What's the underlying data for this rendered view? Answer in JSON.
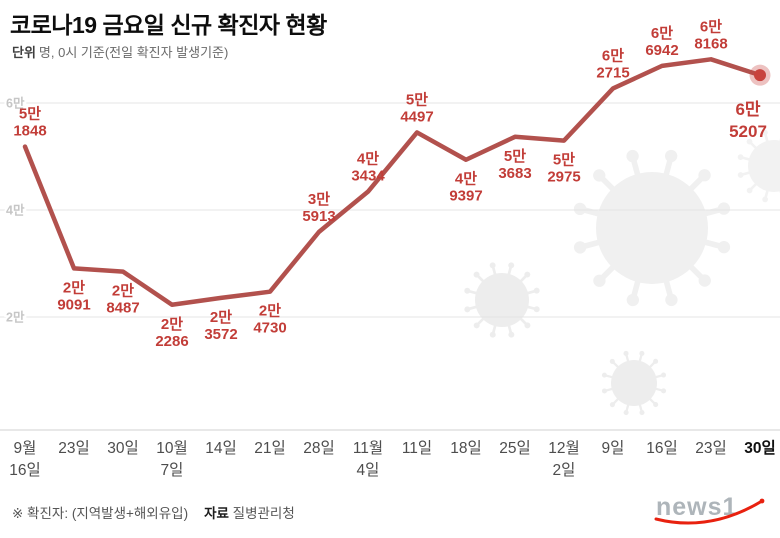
{
  "header": {
    "title": "코로나19 금요일 신규 확진자 현황",
    "unit_label": "단위",
    "unit_text": "명, 0시 기준(전일 확진자 발생기준)"
  },
  "footer": {
    "note": "※ 확진자: (지역발생+해외유입)",
    "source_label": "자료",
    "source": "질병관리청",
    "logo": "news1"
  },
  "chart_data": {
    "type": "line",
    "title": "코로나19 금요일 신규 확진자 현황",
    "ylabel": "명",
    "ylim": [
      0,
      70000
    ],
    "grid": true,
    "legend": "none",
    "line_color": "#b2514d",
    "marker_color": "#c8423d",
    "label_color": "#c23d38",
    "grid_color": "#e4e4e4",
    "y_ticks": [
      {
        "label": "2만",
        "value": 20000
      },
      {
        "label": "4만",
        "value": 40000
      },
      {
        "label": "6만",
        "value": 60000
      }
    ],
    "points": [
      {
        "x_label": [
          "9월",
          "16일"
        ],
        "value": 51848,
        "label": [
          "5만",
          "1848"
        ],
        "label_side": "above",
        "emphasis": false
      },
      {
        "x_label": [
          "23일"
        ],
        "value": 29091,
        "label": [
          "2만",
          "9091"
        ],
        "label_side": "below",
        "emphasis": false
      },
      {
        "x_label": [
          "30일"
        ],
        "value": 28487,
        "label": [
          "2만",
          "8487"
        ],
        "label_side": "below",
        "emphasis": false
      },
      {
        "x_label": [
          "10월",
          "7일"
        ],
        "value": 22286,
        "label": [
          "2만",
          "2286"
        ],
        "label_side": "below",
        "emphasis": false
      },
      {
        "x_label": [
          "14일"
        ],
        "value": 23572,
        "label": [
          "2만",
          "3572"
        ],
        "label_side": "below",
        "emphasis": false
      },
      {
        "x_label": [
          "21일"
        ],
        "value": 24730,
        "label": [
          "2만",
          "4730"
        ],
        "label_side": "below",
        "emphasis": false
      },
      {
        "x_label": [
          "28일"
        ],
        "value": 35913,
        "label": [
          "3만",
          "5913"
        ],
        "label_side": "above",
        "emphasis": false
      },
      {
        "x_label": [
          "11월",
          "4일"
        ],
        "value": 43434,
        "label": [
          "4만",
          "3434"
        ],
        "label_side": "above",
        "emphasis": false
      },
      {
        "x_label": [
          "11일"
        ],
        "value": 54497,
        "label": [
          "5만",
          "4497"
        ],
        "label_side": "above",
        "emphasis": false
      },
      {
        "x_label": [
          "18일"
        ],
        "value": 49397,
        "label": [
          "4만",
          "9397"
        ],
        "label_side": "below",
        "emphasis": false
      },
      {
        "x_label": [
          "25일"
        ],
        "value": 53683,
        "label": [
          "5만",
          "3683"
        ],
        "label_side": "below",
        "emphasis": false
      },
      {
        "x_label": [
          "12월",
          "2일"
        ],
        "value": 52975,
        "label": [
          "5만",
          "2975"
        ],
        "label_side": "below",
        "emphasis": false
      },
      {
        "x_label": [
          "9일"
        ],
        "value": 62715,
        "label": [
          "6만",
          "2715"
        ],
        "label_side": "above",
        "emphasis": false
      },
      {
        "x_label": [
          "16일"
        ],
        "value": 66942,
        "label": [
          "6만",
          "6942"
        ],
        "label_side": "above",
        "emphasis": false
      },
      {
        "x_label": [
          "23일"
        ],
        "value": 68168,
        "label": [
          "6만",
          "8168"
        ],
        "label_side": "above",
        "emphasis": false
      },
      {
        "x_label": [
          "30일"
        ],
        "value": 65207,
        "label": [
          "6만",
          "5207"
        ],
        "label_side": "below",
        "emphasis": true
      }
    ]
  }
}
